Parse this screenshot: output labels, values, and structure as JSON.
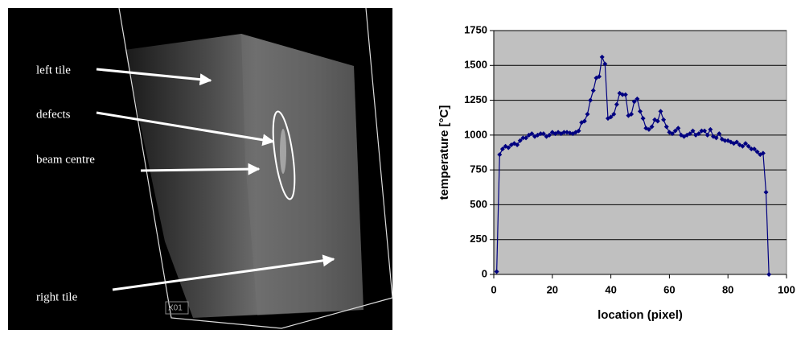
{
  "image": {
    "labels": [
      "left tile",
      "defects",
      "beam centre",
      "right tile"
    ],
    "tag": "X01"
  },
  "chart_data": {
    "type": "line",
    "x_label": "location (pixel)",
    "y_label": "temperature [°C]",
    "x": [
      1,
      2,
      3,
      4,
      5,
      6,
      7,
      8,
      9,
      10,
      11,
      12,
      13,
      14,
      15,
      16,
      17,
      18,
      19,
      20,
      21,
      22,
      23,
      24,
      25,
      26,
      27,
      28,
      29,
      30,
      31,
      32,
      33,
      34,
      35,
      36,
      37,
      38,
      39,
      40,
      41,
      42,
      43,
      44,
      45,
      46,
      47,
      48,
      49,
      50,
      51,
      52,
      53,
      54,
      55,
      56,
      57,
      58,
      59,
      60,
      61,
      62,
      63,
      64,
      65,
      66,
      67,
      68,
      69,
      70,
      71,
      72,
      73,
      74,
      75,
      76,
      77,
      78,
      79,
      80,
      81,
      82,
      83,
      84,
      85,
      86,
      87,
      88,
      89,
      90,
      91,
      92,
      93,
      94
    ],
    "values": [
      20,
      860,
      900,
      920,
      910,
      930,
      940,
      930,
      960,
      980,
      980,
      1000,
      1010,
      990,
      1000,
      1010,
      1010,
      990,
      1000,
      1020,
      1010,
      1020,
      1010,
      1020,
      1020,
      1015,
      1010,
      1020,
      1030,
      1090,
      1100,
      1150,
      1250,
      1320,
      1410,
      1420,
      1560,
      1510,
      1120,
      1130,
      1150,
      1220,
      1300,
      1290,
      1290,
      1140,
      1150,
      1240,
      1260,
      1170,
      1120,
      1050,
      1040,
      1060,
      1110,
      1100,
      1170,
      1110,
      1060,
      1020,
      1010,
      1030,
      1050,
      1000,
      990,
      1000,
      1010,
      1030,
      1000,
      1010,
      1030,
      1030,
      1000,
      1040,
      990,
      980,
      1010,
      970,
      960,
      960,
      950,
      940,
      950,
      930,
      920,
      940,
      920,
      900,
      900,
      880,
      860,
      870,
      590,
      0
    ],
    "color": "#000080",
    "xlim": [
      0,
      100
    ],
    "xticks": [
      0,
      20,
      40,
      60,
      80,
      100
    ],
    "ylim": [
      0,
      1750
    ],
    "yticks": [
      0,
      250,
      500,
      750,
      1000,
      1250,
      1500,
      1750
    ],
    "grid": true
  }
}
